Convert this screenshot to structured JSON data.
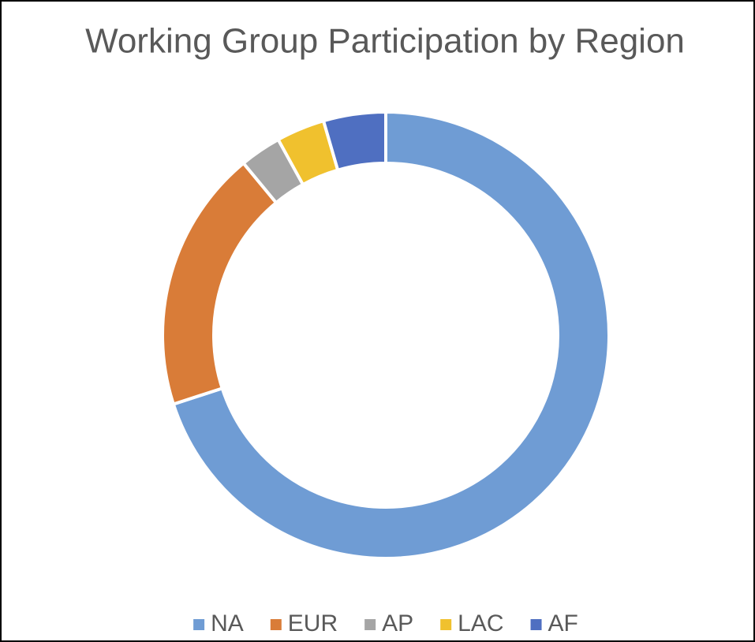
{
  "chart_data": {
    "type": "donut",
    "title": "Working Group Participation by Region",
    "categories": [
      "NA",
      "EUR",
      "AP",
      "LAC",
      "AF"
    ],
    "values": [
      70,
      19,
      3,
      3.5,
      4.5
    ],
    "colors": [
      "#6f9cd4",
      "#d97c38",
      "#a5a5a5",
      "#f0c12e",
      "#4f6fc1"
    ],
    "legend": "bottom"
  }
}
